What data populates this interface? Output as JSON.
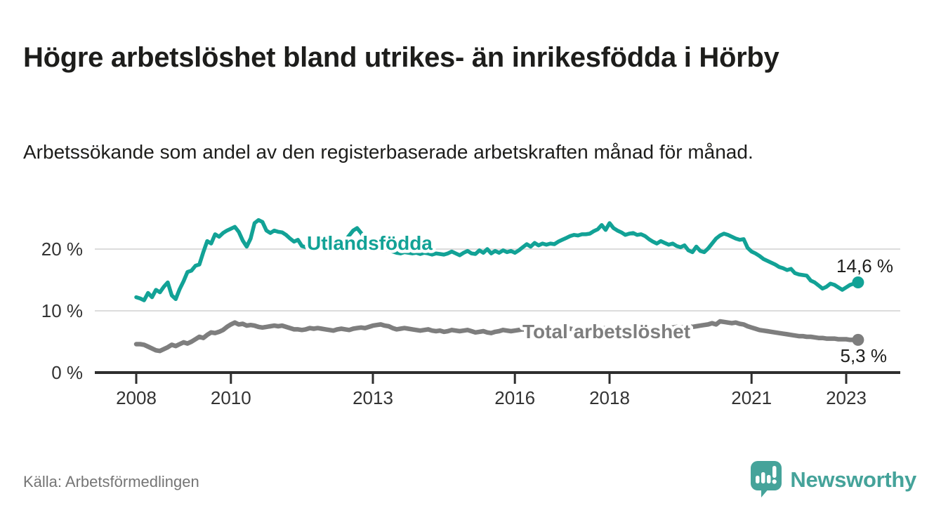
{
  "header": {
    "title": "Högre arbetslöshet bland utrikes- än inrikesfödda i Hörby",
    "subtitle": "Arbetssökande som andel av den registerbaserade arbetskraften månad för månad."
  },
  "footer": {
    "source": "Källa: Arbetsförmedlingen",
    "brand": "Newsworthy"
  },
  "colors": {
    "accent_teal": "#12a296",
    "series_gray": "#7e7e7e",
    "grid": "#dcdcdc",
    "axis": "#2e2e2e",
    "text": "#1d1d1b",
    "muted": "#757575",
    "brand_teal": "#45a39a"
  },
  "chart_data": {
    "type": "line",
    "title": "Högre arbetslöshet bland utrikes- än inrikesfödda i Hörby",
    "subtitle": "Arbetssökande som andel av den registerbaserade arbetskraften månad för månad.",
    "x_unit": "year-month",
    "x_start_year": 2008,
    "points_per_year": 12,
    "x_end": 2023.25,
    "xlim": [
      2007.6,
      2023.9
    ],
    "ylim": [
      0,
      26.5
    ],
    "grid": "horizontal-only",
    "y_ticks": [
      0,
      10,
      20
    ],
    "y_tick_labels": [
      "0 %",
      "10 %",
      "20 %"
    ],
    "x_ticks": [
      2008,
      2010,
      2013,
      2016,
      2018,
      2021,
      2023
    ],
    "x_tick_labels": [
      "2008",
      "2010",
      "2013",
      "2016",
      "2018",
      "2021",
      "2023"
    ],
    "legend_position": "inline-labels-on-lines",
    "series": [
      {
        "name": "Utlandsfödda",
        "color": "#12a296",
        "end_label": "14,6 %",
        "end_value": 14.6,
        "values": [
          12.2,
          12.0,
          11.7,
          12.9,
          12.2,
          13.4,
          13.0,
          13.9,
          14.6,
          12.5,
          11.9,
          13.5,
          14.8,
          16.3,
          16.5,
          17.3,
          17.5,
          19.5,
          21.3,
          20.9,
          22.4,
          22.0,
          22.6,
          23.0,
          23.3,
          23.6,
          22.8,
          21.4,
          20.4,
          21.7,
          24.2,
          24.7,
          24.4,
          23.0,
          22.6,
          23.0,
          22.8,
          22.7,
          22.3,
          21.7,
          21.2,
          21.5,
          20.5,
          20.3,
          21.3,
          21.0,
          20.8,
          20.6,
          20.4,
          20.1,
          20.0,
          20.5,
          21.0,
          21.4,
          22.2,
          23.0,
          23.4,
          22.6,
          21.6,
          20.9,
          20.6,
          20.4,
          20.2,
          20.0,
          19.8,
          19.6,
          19.4,
          19.3,
          19.5,
          19.4,
          19.3,
          19.4,
          19.2,
          19.4,
          19.3,
          19.1,
          19.3,
          19.2,
          19.1,
          19.3,
          19.6,
          19.3,
          19.0,
          19.4,
          19.7,
          19.3,
          19.2,
          19.8,
          19.4,
          20.0,
          19.3,
          19.7,
          19.4,
          19.8,
          19.5,
          19.7,
          19.4,
          19.8,
          20.3,
          20.8,
          20.4,
          21.0,
          20.6,
          20.9,
          20.7,
          20.9,
          20.8,
          21.2,
          21.5,
          21.8,
          22.1,
          22.3,
          22.2,
          22.4,
          22.4,
          22.5,
          22.9,
          23.2,
          23.9,
          23.1,
          24.2,
          23.4,
          23.0,
          22.7,
          22.3,
          22.5,
          22.6,
          22.3,
          22.4,
          22.1,
          21.6,
          21.2,
          20.9,
          21.3,
          21.0,
          20.7,
          20.9,
          20.5,
          20.3,
          20.6,
          19.8,
          19.5,
          20.4,
          19.7,
          19.5,
          20.1,
          20.9,
          21.7,
          22.2,
          22.5,
          22.3,
          22.0,
          21.7,
          21.5,
          21.6,
          20.2,
          19.6,
          19.3,
          18.9,
          18.4,
          18.1,
          17.8,
          17.5,
          17.1,
          16.9,
          16.6,
          16.8,
          16.1,
          15.9,
          15.8,
          15.7,
          14.9,
          14.6,
          14.1,
          13.6,
          13.9,
          14.4,
          14.2,
          13.8,
          13.4,
          13.8,
          14.2,
          14.4,
          14.6
        ]
      },
      {
        "name": "Total arbetslöshet",
        "color": "#7e7e7e",
        "end_label": "5,3 %",
        "end_value": 5.3,
        "values": [
          4.6,
          4.6,
          4.5,
          4.2,
          3.9,
          3.6,
          3.5,
          3.8,
          4.1,
          4.5,
          4.3,
          4.6,
          4.9,
          4.7,
          5.0,
          5.4,
          5.8,
          5.6,
          6.1,
          6.5,
          6.4,
          6.6,
          6.9,
          7.4,
          7.8,
          8.1,
          7.8,
          7.9,
          7.6,
          7.7,
          7.6,
          7.4,
          7.3,
          7.4,
          7.5,
          7.6,
          7.5,
          7.6,
          7.4,
          7.2,
          7.0,
          7.0,
          6.9,
          7.0,
          7.2,
          7.1,
          7.2,
          7.1,
          7.0,
          6.9,
          6.8,
          7.0,
          7.1,
          7.0,
          6.9,
          7.1,
          7.2,
          7.3,
          7.2,
          7.4,
          7.6,
          7.7,
          7.8,
          7.6,
          7.5,
          7.2,
          7.0,
          7.1,
          7.2,
          7.1,
          7.0,
          6.9,
          6.8,
          6.9,
          7.0,
          6.8,
          6.7,
          6.8,
          6.6,
          6.7,
          6.9,
          6.8,
          6.7,
          6.8,
          6.9,
          6.7,
          6.5,
          6.6,
          6.7,
          6.5,
          6.4,
          6.6,
          6.7,
          6.9,
          6.8,
          6.7,
          6.8,
          6.9,
          7.0,
          6.9,
          6.8,
          6.9,
          7.0,
          7.1,
          7.0,
          6.9,
          7.0,
          7.1,
          7.1,
          7.2,
          7.1,
          7.0,
          7.1,
          7.2,
          7.1,
          7.0,
          7.1,
          7.2,
          7.1,
          7.2,
          7.2,
          7.1,
          7.0,
          6.9,
          7.0,
          6.9,
          6.8,
          6.9,
          7.0,
          6.9,
          7.0,
          7.1,
          7.1,
          7.2,
          7.3,
          7.2,
          7.3,
          7.4,
          7.3,
          7.4,
          7.5,
          7.4,
          7.5,
          7.6,
          7.7,
          7.8,
          8.0,
          7.8,
          8.3,
          8.2,
          8.1,
          8.0,
          8.1,
          7.9,
          7.8,
          7.5,
          7.3,
          7.1,
          6.9,
          6.8,
          6.7,
          6.6,
          6.5,
          6.4,
          6.3,
          6.2,
          6.1,
          6.0,
          5.9,
          5.9,
          5.8,
          5.8,
          5.7,
          5.6,
          5.6,
          5.5,
          5.5,
          5.5,
          5.4,
          5.4,
          5.4,
          5.3,
          5.3,
          5.3
        ]
      }
    ]
  }
}
